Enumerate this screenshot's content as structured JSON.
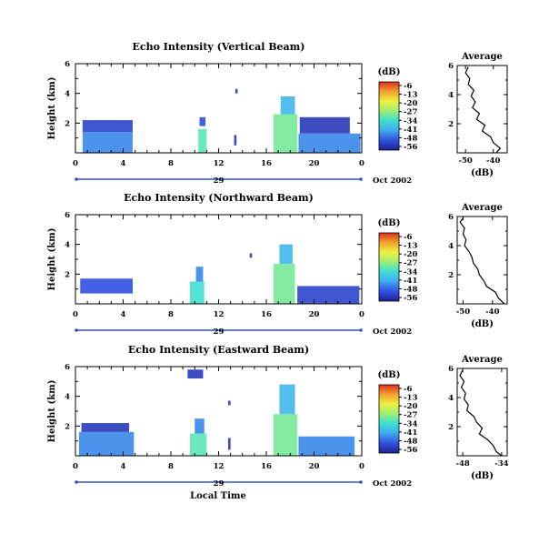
{
  "chart_data": [
    {
      "type": "heatmap",
      "title": "Echo Intensity (Vertical Beam)",
      "ylabel": "Height (km)",
      "xlabel": "",
      "x_ticks": [
        "0",
        "4",
        "8",
        "12",
        "16",
        "20",
        "0"
      ],
      "x_range_hours": [
        0,
        24
      ],
      "y_ticks": [
        "2",
        "4",
        "6"
      ],
      "y_range_km": [
        0,
        6
      ],
      "date_day": "29",
      "date_month": "Oct 2002",
      "colorbar": {
        "unit": "(dB)",
        "ticks": [
          "-6",
          "-13",
          "-20",
          "-27",
          "-34",
          "-41",
          "-48",
          "-56"
        ]
      },
      "cells": [
        {
          "t0": 0.6,
          "t1": 4.8,
          "h0": 0.0,
          "h1": 1.4,
          "db": -44
        },
        {
          "t0": 0.6,
          "t1": 4.8,
          "h0": 1.4,
          "h1": 2.2,
          "db": -50
        },
        {
          "t0": 10.3,
          "t1": 11.0,
          "h0": 0.0,
          "h1": 1.6,
          "db": -32
        },
        {
          "t0": 10.4,
          "t1": 10.9,
          "h0": 1.8,
          "h1": 2.4,
          "db": -48
        },
        {
          "t0": 13.3,
          "t1": 13.5,
          "h0": 0.5,
          "h1": 1.2,
          "db": -52
        },
        {
          "t0": 13.4,
          "t1": 13.6,
          "h0": 4.0,
          "h1": 4.3,
          "db": -52
        },
        {
          "t0": 16.6,
          "t1": 18.6,
          "h0": 0.0,
          "h1": 2.6,
          "db": -30
        },
        {
          "t0": 17.2,
          "t1": 18.4,
          "h0": 2.6,
          "h1": 3.8,
          "db": -40
        },
        {
          "t0": 18.7,
          "t1": 23.9,
          "h0": 0.0,
          "h1": 1.3,
          "db": -44
        },
        {
          "t0": 18.8,
          "t1": 23.0,
          "h0": 1.3,
          "h1": 2.4,
          "db": -52
        }
      ],
      "average": {
        "title": "Average",
        "xlabel": "(dB)",
        "x_ticks": [
          "-50",
          "-40"
        ],
        "x_range": [
          -53,
          -35
        ],
        "y_ticks": [
          "2",
          "4",
          "6"
        ],
        "y_range_km": [
          0,
          6
        ],
        "points": [
          [
            -49,
            5.9
          ],
          [
            -50,
            5.5
          ],
          [
            -48.5,
            5.1
          ],
          [
            -49,
            4.7
          ],
          [
            -47,
            4.3
          ],
          [
            -48,
            3.9
          ],
          [
            -46.5,
            3.5
          ],
          [
            -47.5,
            3.1
          ],
          [
            -45,
            2.7
          ],
          [
            -46,
            2.3
          ],
          [
            -43,
            1.9
          ],
          [
            -44,
            1.5
          ],
          [
            -41,
            1.1
          ],
          [
            -40,
            0.7
          ],
          [
            -37.5,
            0.3
          ],
          [
            -39,
            0.0
          ]
        ]
      }
    },
    {
      "type": "heatmap",
      "title": "Echo Intensity (Northward Beam)",
      "ylabel": "Height (km)",
      "xlabel": "",
      "x_ticks": [
        "0",
        "4",
        "8",
        "12",
        "16",
        "20",
        "0"
      ],
      "x_range_hours": [
        0,
        24
      ],
      "y_ticks": [
        "2",
        "4",
        "6"
      ],
      "y_range_km": [
        0,
        6
      ],
      "date_day": "29",
      "date_month": "Oct 2002",
      "colorbar": {
        "unit": "(dB)",
        "ticks": [
          "-6",
          "-13",
          "-20",
          "-27",
          "-34",
          "-41",
          "-48",
          "-56"
        ]
      },
      "cells": [
        {
          "t0": 0.4,
          "t1": 4.8,
          "h0": 0.7,
          "h1": 1.7,
          "db": -48
        },
        {
          "t0": 9.6,
          "t1": 10.8,
          "h0": 0.0,
          "h1": 1.5,
          "db": -34
        },
        {
          "t0": 10.1,
          "t1": 10.7,
          "h0": 1.5,
          "h1": 2.5,
          "db": -44
        },
        {
          "t0": 14.6,
          "t1": 14.8,
          "h0": 3.1,
          "h1": 3.4,
          "db": -52
        },
        {
          "t0": 16.6,
          "t1": 18.4,
          "h0": 0.0,
          "h1": 2.7,
          "db": -30
        },
        {
          "t0": 17.1,
          "t1": 18.2,
          "h0": 2.7,
          "h1": 4.0,
          "db": -40
        },
        {
          "t0": 18.6,
          "t1": 23.8,
          "h0": 0.0,
          "h1": 1.2,
          "db": -50
        }
      ],
      "average": {
        "title": "Average",
        "xlabel": "(dB)",
        "x_ticks": [
          "-50",
          "-40"
        ],
        "x_range": [
          -52,
          -35
        ],
        "y_ticks": [
          "2",
          "4",
          "6"
        ],
        "y_range_km": [
          0,
          6
        ],
        "points": [
          [
            -50,
            5.9
          ],
          [
            -51,
            5.6
          ],
          [
            -49.5,
            5.2
          ],
          [
            -50,
            4.8
          ],
          [
            -49,
            4.4
          ],
          [
            -49.5,
            4.0
          ],
          [
            -48,
            3.6
          ],
          [
            -47,
            3.2
          ],
          [
            -46.5,
            2.8
          ],
          [
            -45,
            2.4
          ],
          [
            -44.5,
            2.0
          ],
          [
            -43,
            1.6
          ],
          [
            -42,
            1.2
          ],
          [
            -39,
            0.8
          ],
          [
            -38,
            0.4
          ],
          [
            -36,
            0.0
          ]
        ]
      }
    },
    {
      "type": "heatmap",
      "title": "Echo Intensity (Eastward Beam)",
      "ylabel": "Height (km)",
      "xlabel": "Local Time",
      "x_ticks": [
        "0",
        "4",
        "8",
        "12",
        "16",
        "20",
        "0"
      ],
      "x_range_hours": [
        0,
        24
      ],
      "y_ticks": [
        "2",
        "4",
        "6"
      ],
      "y_range_km": [
        0,
        6
      ],
      "date_day": "29",
      "date_month": "Oct 2002",
      "colorbar": {
        "unit": "(dB)",
        "ticks": [
          "-6",
          "-13",
          "-20",
          "-27",
          "-34",
          "-41",
          "-48",
          "-56"
        ]
      },
      "cells": [
        {
          "t0": 0.3,
          "t1": 4.9,
          "h0": 0.0,
          "h1": 1.6,
          "db": -44
        },
        {
          "t0": 0.5,
          "t1": 4.5,
          "h0": 1.6,
          "h1": 2.2,
          "db": -52
        },
        {
          "t0": 9.6,
          "t1": 11.0,
          "h0": 0.0,
          "h1": 1.5,
          "db": -32
        },
        {
          "t0": 10.0,
          "t1": 10.8,
          "h0": 1.5,
          "h1": 2.5,
          "db": -44
        },
        {
          "t0": 9.4,
          "t1": 10.7,
          "h0": 5.2,
          "h1": 5.8,
          "db": -52
        },
        {
          "t0": 12.8,
          "t1": 13.0,
          "h0": 0.4,
          "h1": 1.2,
          "db": -52
        },
        {
          "t0": 12.8,
          "t1": 13.0,
          "h0": 3.4,
          "h1": 3.7,
          "db": -52
        },
        {
          "t0": 16.6,
          "t1": 18.6,
          "h0": 0.0,
          "h1": 2.8,
          "db": -30
        },
        {
          "t0": 17.1,
          "t1": 18.4,
          "h0": 2.8,
          "h1": 4.8,
          "db": -40
        },
        {
          "t0": 18.7,
          "t1": 23.4,
          "h0": 0.0,
          "h1": 1.3,
          "db": -44
        }
      ],
      "average": {
        "title": "Average",
        "xlabel": "(dB)",
        "x_ticks": [
          "-48",
          "-34"
        ],
        "x_range": [
          -50,
          -32
        ],
        "y_ticks": [
          "2",
          "4",
          "6"
        ],
        "y_range_km": [
          0,
          6
        ],
        "points": [
          [
            -48,
            5.9
          ],
          [
            -49,
            5.5
          ],
          [
            -47.5,
            5.1
          ],
          [
            -48.5,
            4.7
          ],
          [
            -47,
            4.3
          ],
          [
            -47.5,
            3.9
          ],
          [
            -46,
            3.5
          ],
          [
            -46.5,
            3.1
          ],
          [
            -44,
            2.7
          ],
          [
            -43,
            2.3
          ],
          [
            -41,
            1.9
          ],
          [
            -42,
            1.5
          ],
          [
            -39,
            1.1
          ],
          [
            -37,
            0.7
          ],
          [
            -36,
            0.3
          ],
          [
            -34,
            0.0
          ]
        ]
      }
    }
  ]
}
